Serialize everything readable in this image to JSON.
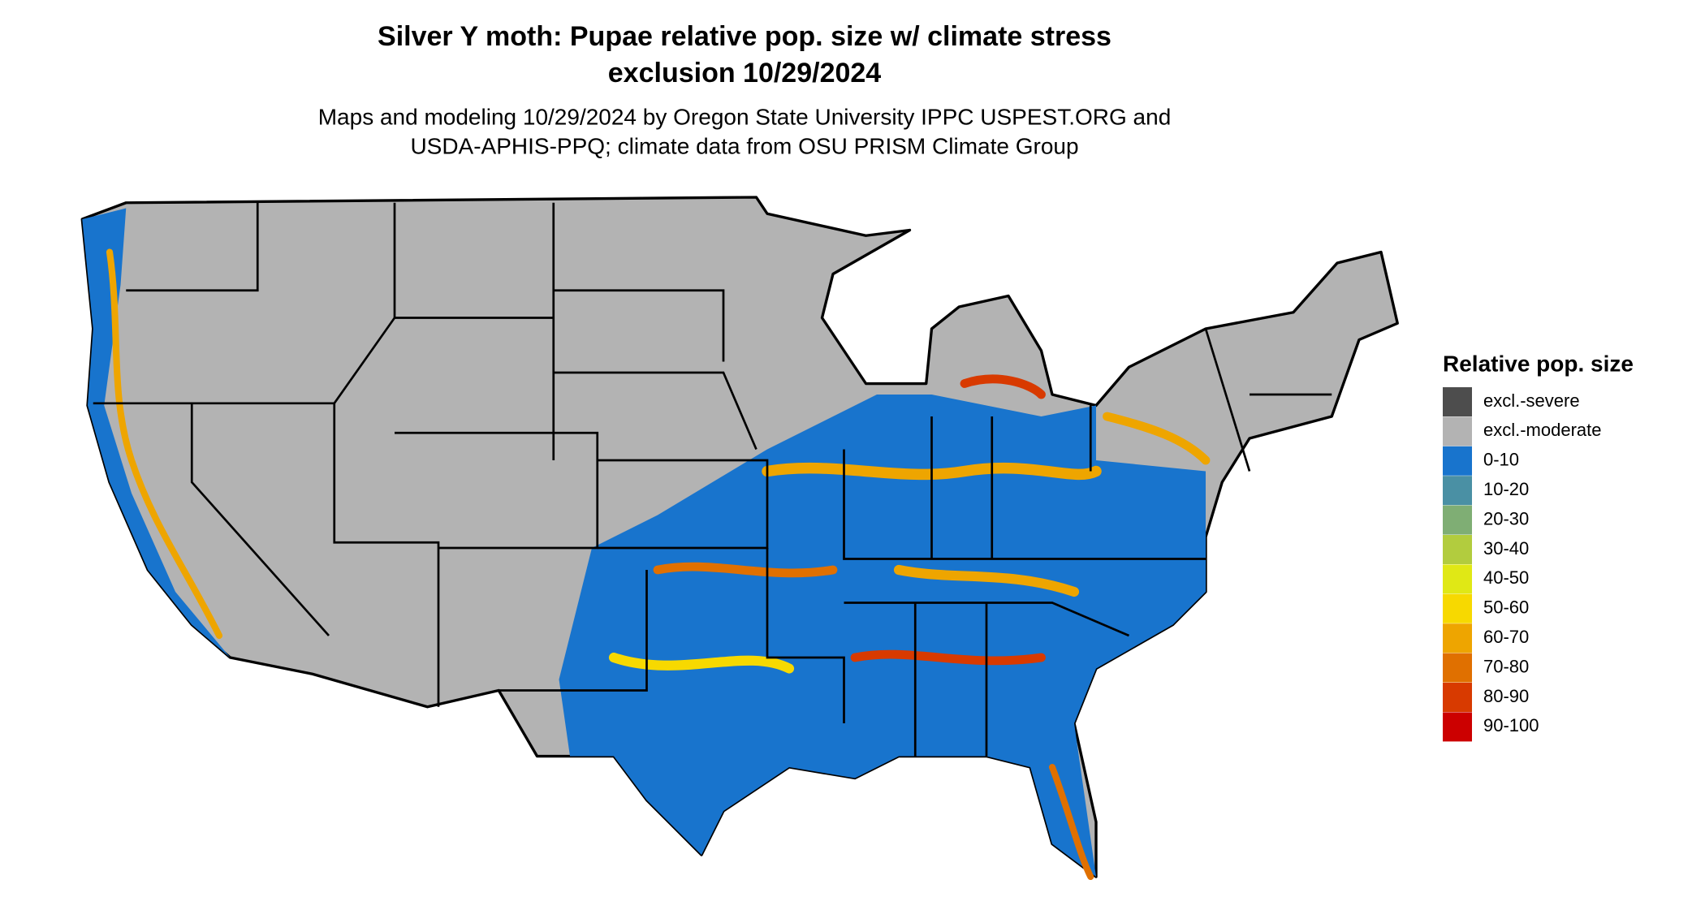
{
  "title": [
    "Silver Y moth: Pupae relative pop. size w/ climate stress",
    "exclusion 10/29/2024"
  ],
  "subtitle": [
    "Maps and modeling 10/29/2024 by Oregon State University IPPC USPEST.ORG and",
    "USDA-APHIS-PPQ; climate data from OSU PRISM Climate Group"
  ],
  "legend": {
    "title": "Relative pop. size",
    "items": [
      {
        "label": "excl.-severe",
        "color": "#4d4d4d"
      },
      {
        "label": "excl.-moderate",
        "color": "#b3b3b3"
      },
      {
        "label": "0-10",
        "color": "#1874cd"
      },
      {
        "label": "10-20",
        "color": "#4a90a4"
      },
      {
        "label": "20-30",
        "color": "#7fae74"
      },
      {
        "label": "30-40",
        "color": "#b2cc3e"
      },
      {
        "label": "40-50",
        "color": "#e0e815"
      },
      {
        "label": "50-60",
        "color": "#f7d900"
      },
      {
        "label": "60-70",
        "color": "#eea500"
      },
      {
        "label": "70-80",
        "color": "#e07000"
      },
      {
        "label": "80-90",
        "color": "#d83a00"
      },
      {
        "label": "90-100",
        "color": "#cc0000"
      }
    ]
  }
}
